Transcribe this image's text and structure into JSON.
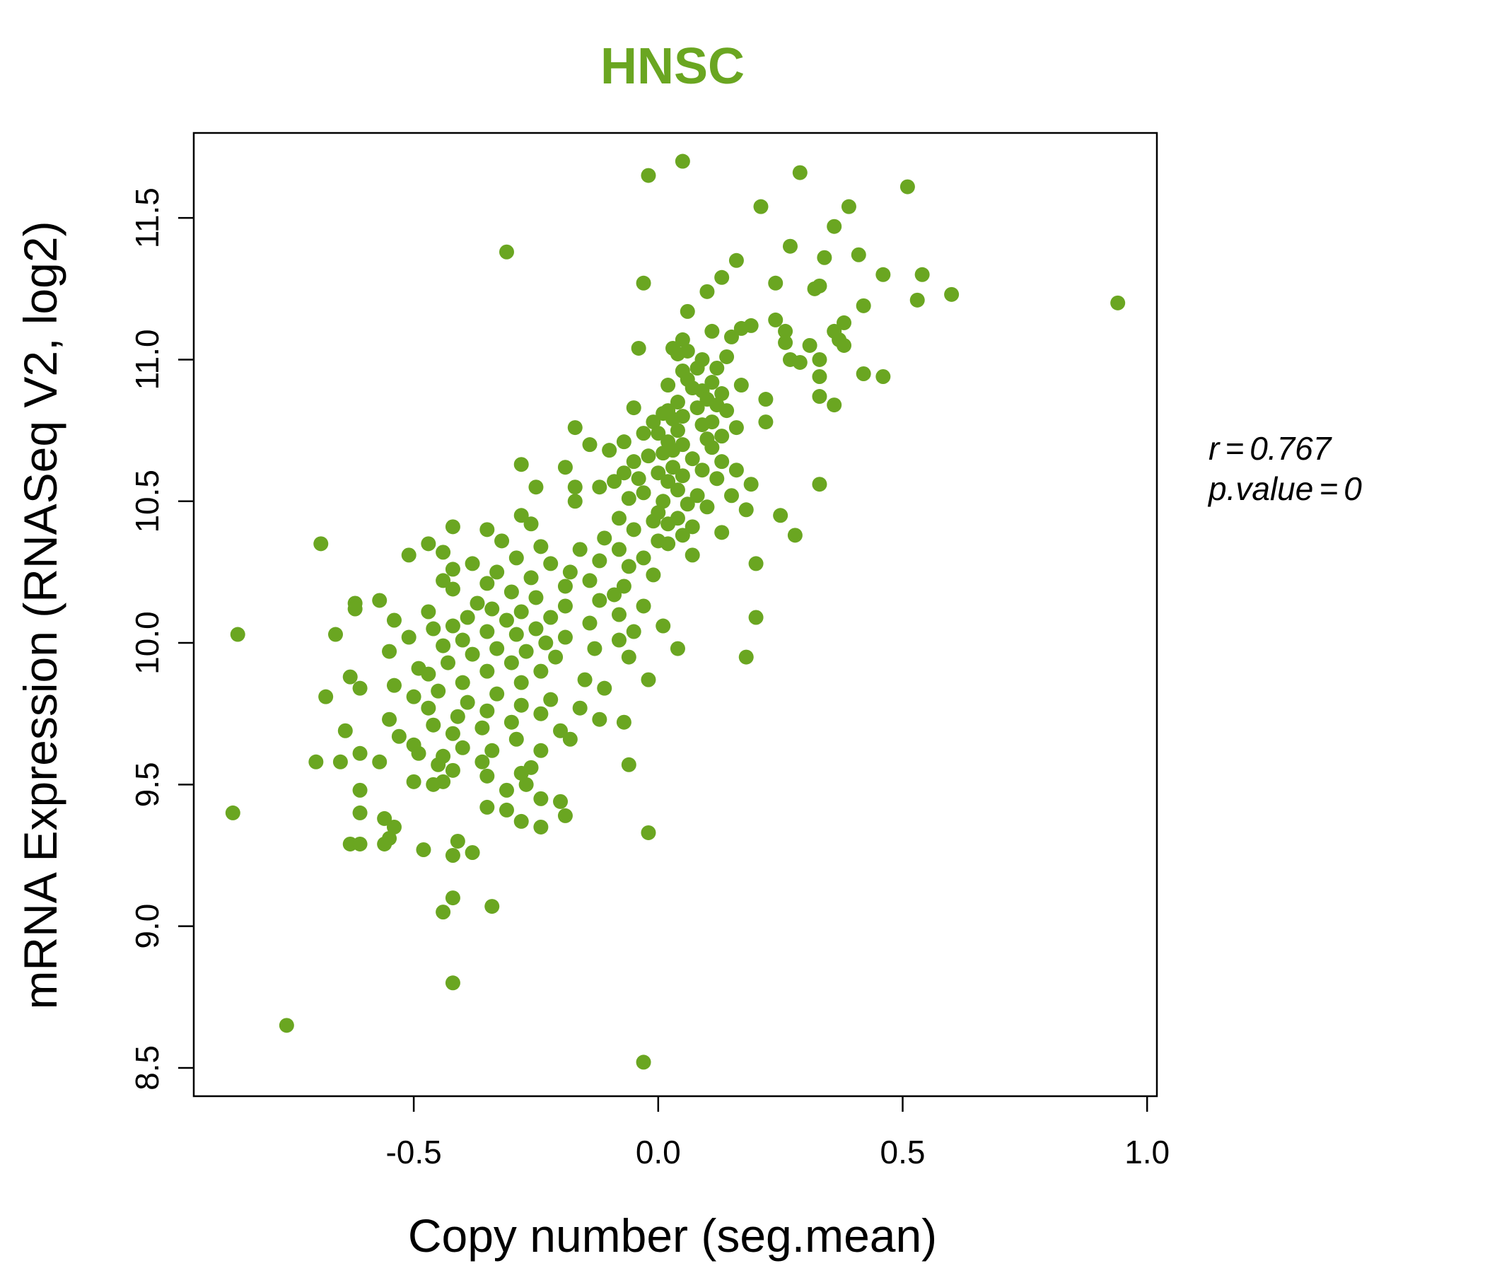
{
  "chart_data": {
    "type": "scatter",
    "title": "HNSC",
    "xlabel": "Copy number (seg.mean)",
    "ylabel": "mRNA Expression (RNASeq V2, log2)",
    "xlim": [
      -0.95,
      1.02
    ],
    "ylim": [
      8.4,
      11.8
    ],
    "x_ticks": [
      -0.5,
      0.0,
      0.5,
      1.0
    ],
    "x_tick_labels": [
      "-0.5",
      "0.0",
      "0.5",
      "1.0"
    ],
    "y_ticks": [
      8.5,
      9.0,
      9.5,
      10.0,
      10.5,
      11.0,
      11.5
    ],
    "y_tick_labels": [
      "8.5",
      "9.0",
      "9.5",
      "10.0",
      "10.5",
      "11.0",
      "11.5"
    ],
    "grid": false,
    "color": "#6aa621",
    "stats": {
      "r_label": "r",
      "r_value": "0.767",
      "p_label": "p.value",
      "p_value": "0"
    },
    "points": [
      [
        -0.02,
        11.65
      ],
      [
        0.05,
        11.7
      ],
      [
        0.29,
        11.66
      ],
      [
        0.51,
        11.61
      ],
      [
        -0.31,
        11.38
      ],
      [
        0.21,
        11.54
      ],
      [
        0.39,
        11.54
      ],
      [
        0.36,
        11.47
      ],
      [
        0.27,
        11.4
      ],
      [
        0.34,
        11.36
      ],
      [
        0.41,
        11.37
      ],
      [
        0.16,
        11.35
      ],
      [
        0.13,
        11.29
      ],
      [
        0.46,
        11.3
      ],
      [
        0.54,
        11.3
      ],
      [
        -0.03,
        11.27
      ],
      [
        0.24,
        11.27
      ],
      [
        0.33,
        11.26
      ],
      [
        0.32,
        11.25
      ],
      [
        0.1,
        11.24
      ],
      [
        0.6,
        11.23
      ],
      [
        0.53,
        11.21
      ],
      [
        0.94,
        11.2
      ],
      [
        0.42,
        11.19
      ],
      [
        0.06,
        11.17
      ],
      [
        0.24,
        11.14
      ],
      [
        0.38,
        11.13
      ],
      [
        0.19,
        11.12
      ],
      [
        0.17,
        11.11
      ],
      [
        0.11,
        11.1
      ],
      [
        0.26,
        11.1
      ],
      [
        0.36,
        11.1
      ],
      [
        0.15,
        11.08
      ],
      [
        0.05,
        11.07
      ],
      [
        0.37,
        11.07
      ],
      [
        0.26,
        11.06
      ],
      [
        0.38,
        11.05
      ],
      [
        0.31,
        11.05
      ],
      [
        -0.04,
        11.04
      ],
      [
        0.03,
        11.04
      ],
      [
        0.06,
        11.03
      ],
      [
        0.04,
        11.02
      ],
      [
        0.14,
        11.01
      ],
      [
        0.09,
        11.0
      ],
      [
        0.27,
        11.0
      ],
      [
        0.33,
        11.0
      ],
      [
        0.29,
        10.99
      ],
      [
        0.12,
        10.97
      ],
      [
        0.08,
        10.97
      ],
      [
        0.05,
        10.96
      ],
      [
        0.42,
        10.95
      ],
      [
        0.46,
        10.94
      ],
      [
        0.33,
        10.94
      ],
      [
        0.06,
        10.93
      ],
      [
        0.11,
        10.92
      ],
      [
        0.17,
        10.91
      ],
      [
        0.02,
        10.91
      ],
      [
        0.07,
        10.9
      ],
      [
        0.09,
        10.89
      ],
      [
        0.13,
        10.88
      ],
      [
        0.33,
        10.87
      ],
      [
        0.1,
        10.86
      ],
      [
        0.22,
        10.86
      ],
      [
        0.04,
        10.85
      ],
      [
        0.36,
        10.84
      ],
      [
        0.12,
        10.84
      ],
      [
        0.08,
        10.83
      ],
      [
        -0.05,
        10.83
      ],
      [
        0.02,
        10.82
      ],
      [
        0.14,
        10.82
      ],
      [
        0.01,
        10.81
      ],
      [
        0.05,
        10.8
      ],
      [
        0.03,
        10.79
      ],
      [
        0.22,
        10.78
      ],
      [
        -0.01,
        10.78
      ],
      [
        0.11,
        10.78
      ],
      [
        0.09,
        10.77
      ],
      [
        0.16,
        10.76
      ],
      [
        -0.17,
        10.76
      ],
      [
        0.04,
        10.75
      ],
      [
        0.0,
        10.74
      ],
      [
        -0.03,
        10.74
      ],
      [
        0.13,
        10.73
      ],
      [
        0.1,
        10.72
      ],
      [
        0.02,
        10.71
      ],
      [
        -0.07,
        10.71
      ],
      [
        0.05,
        10.7
      ],
      [
        -0.14,
        10.7
      ],
      [
        0.11,
        10.69
      ],
      [
        0.03,
        10.68
      ],
      [
        -0.1,
        10.68
      ],
      [
        0.01,
        10.67
      ],
      [
        -0.02,
        10.66
      ],
      [
        0.07,
        10.65
      ],
      [
        0.13,
        10.64
      ],
      [
        -0.05,
        10.64
      ],
      [
        -0.28,
        10.63
      ],
      [
        -0.19,
        10.62
      ],
      [
        0.03,
        10.62
      ],
      [
        0.09,
        10.61
      ],
      [
        0.16,
        10.61
      ],
      [
        -0.07,
        10.6
      ],
      [
        0.0,
        10.6
      ],
      [
        0.05,
        10.59
      ],
      [
        -0.04,
        10.58
      ],
      [
        0.12,
        10.58
      ],
      [
        -0.09,
        10.57
      ],
      [
        0.02,
        10.57
      ],
      [
        0.19,
        10.56
      ],
      [
        0.33,
        10.56
      ],
      [
        -0.17,
        10.55
      ],
      [
        -0.25,
        10.55
      ],
      [
        -0.12,
        10.55
      ],
      [
        0.04,
        10.54
      ],
      [
        -0.03,
        10.53
      ],
      [
        0.08,
        10.52
      ],
      [
        0.15,
        10.52
      ],
      [
        -0.06,
        10.51
      ],
      [
        0.01,
        10.5
      ],
      [
        -0.17,
        10.5
      ],
      [
        0.06,
        10.49
      ],
      [
        0.1,
        10.48
      ],
      [
        0.18,
        10.47
      ],
      [
        0.0,
        10.46
      ],
      [
        -0.28,
        10.45
      ],
      [
        0.25,
        10.45
      ],
      [
        0.04,
        10.44
      ],
      [
        -0.08,
        10.44
      ],
      [
        -0.01,
        10.43
      ],
      [
        0.02,
        10.42
      ],
      [
        -0.26,
        10.42
      ],
      [
        0.07,
        10.41
      ],
      [
        -0.05,
        10.4
      ],
      [
        -0.42,
        10.41
      ],
      [
        -0.35,
        10.4
      ],
      [
        0.13,
        10.39
      ],
      [
        0.28,
        10.38
      ],
      [
        0.05,
        10.38
      ],
      [
        -0.11,
        10.37
      ],
      [
        0.0,
        10.36
      ],
      [
        -0.32,
        10.36
      ],
      [
        -0.47,
        10.35
      ],
      [
        -0.69,
        10.35
      ],
      [
        0.02,
        10.35
      ],
      [
        -0.24,
        10.34
      ],
      [
        -0.08,
        10.33
      ],
      [
        -0.16,
        10.33
      ],
      [
        -0.44,
        10.32
      ],
      [
        -0.51,
        10.31
      ],
      [
        0.07,
        10.31
      ],
      [
        -0.03,
        10.3
      ],
      [
        -0.29,
        10.3
      ],
      [
        -0.12,
        10.29
      ],
      [
        0.2,
        10.28
      ],
      [
        -0.38,
        10.28
      ],
      [
        -0.22,
        10.28
      ],
      [
        -0.06,
        10.27
      ],
      [
        -0.42,
        10.26
      ],
      [
        -0.33,
        10.25
      ],
      [
        -0.18,
        10.25
      ],
      [
        -0.01,
        10.24
      ],
      [
        -0.26,
        10.23
      ],
      [
        -0.44,
        10.22
      ],
      [
        -0.14,
        10.22
      ],
      [
        -0.35,
        10.21
      ],
      [
        -0.07,
        10.2
      ],
      [
        -0.19,
        10.2
      ],
      [
        -0.42,
        10.19
      ],
      [
        -0.3,
        10.18
      ],
      [
        -0.09,
        10.17
      ],
      [
        -0.25,
        10.16
      ],
      [
        -0.57,
        10.15
      ],
      [
        -0.12,
        10.15
      ],
      [
        -0.37,
        10.14
      ],
      [
        -0.62,
        10.14
      ],
      [
        -0.03,
        10.13
      ],
      [
        -0.19,
        10.13
      ],
      [
        -0.34,
        10.12
      ],
      [
        -0.62,
        10.12
      ],
      [
        -0.28,
        10.11
      ],
      [
        -0.47,
        10.11
      ],
      [
        -0.08,
        10.1
      ],
      [
        -0.39,
        10.09
      ],
      [
        0.2,
        10.09
      ],
      [
        -0.22,
        10.09
      ],
      [
        -0.54,
        10.08
      ],
      [
        -0.31,
        10.08
      ],
      [
        -0.14,
        10.07
      ],
      [
        -0.42,
        10.06
      ],
      [
        0.01,
        10.06
      ],
      [
        -0.25,
        10.05
      ],
      [
        -0.46,
        10.05
      ],
      [
        -0.35,
        10.04
      ],
      [
        -0.05,
        10.04
      ],
      [
        -0.86,
        10.03
      ],
      [
        -0.66,
        10.03
      ],
      [
        -0.29,
        10.03
      ],
      [
        -0.51,
        10.02
      ],
      [
        -0.19,
        10.02
      ],
      [
        -0.4,
        10.01
      ],
      [
        -0.08,
        10.01
      ],
      [
        -0.23,
        10.0
      ],
      [
        -0.44,
        9.99
      ],
      [
        -0.33,
        9.98
      ],
      [
        -0.13,
        9.98
      ],
      [
        0.04,
        9.98
      ],
      [
        -0.55,
        9.97
      ],
      [
        -0.27,
        9.97
      ],
      [
        -0.38,
        9.96
      ],
      [
        -0.06,
        9.95
      ],
      [
        -0.21,
        9.95
      ],
      [
        0.18,
        9.95
      ],
      [
        -0.43,
        9.93
      ],
      [
        -0.3,
        9.93
      ],
      [
        -0.49,
        9.91
      ],
      [
        -0.24,
        9.9
      ],
      [
        -0.35,
        9.9
      ],
      [
        -0.47,
        9.89
      ],
      [
        -0.63,
        9.88
      ],
      [
        -0.15,
        9.87
      ],
      [
        -0.02,
        9.87
      ],
      [
        -0.4,
        9.86
      ],
      [
        -0.28,
        9.86
      ],
      [
        -0.54,
        9.85
      ],
      [
        -0.61,
        9.84
      ],
      [
        -0.11,
        9.84
      ],
      [
        -0.45,
        9.83
      ],
      [
        -0.33,
        9.82
      ],
      [
        -0.5,
        9.81
      ],
      [
        -0.68,
        9.81
      ],
      [
        -0.22,
        9.8
      ],
      [
        -0.39,
        9.79
      ],
      [
        -0.28,
        9.78
      ],
      [
        -0.47,
        9.77
      ],
      [
        -0.16,
        9.77
      ],
      [
        -0.35,
        9.76
      ],
      [
        -0.24,
        9.75
      ],
      [
        -0.41,
        9.74
      ],
      [
        -0.12,
        9.73
      ],
      [
        -0.55,
        9.73
      ],
      [
        -0.3,
        9.72
      ],
      [
        -0.07,
        9.72
      ],
      [
        -0.46,
        9.71
      ],
      [
        -0.36,
        9.7
      ],
      [
        -0.64,
        9.69
      ],
      [
        -0.2,
        9.69
      ],
      [
        -0.42,
        9.68
      ],
      [
        -0.53,
        9.67
      ],
      [
        -0.29,
        9.66
      ],
      [
        -0.18,
        9.66
      ],
      [
        -0.5,
        9.64
      ],
      [
        -0.4,
        9.63
      ],
      [
        -0.34,
        9.62
      ],
      [
        -0.24,
        9.62
      ],
      [
        -0.61,
        9.61
      ],
      [
        -0.49,
        9.61
      ],
      [
        -0.44,
        9.6
      ],
      [
        -0.57,
        9.58
      ],
      [
        -0.36,
        9.58
      ],
      [
        -0.7,
        9.58
      ],
      [
        -0.65,
        9.58
      ],
      [
        -0.45,
        9.57
      ],
      [
        -0.06,
        9.57
      ],
      [
        -0.26,
        9.56
      ],
      [
        -0.42,
        9.55
      ],
      [
        -0.28,
        9.54
      ],
      [
        -0.35,
        9.53
      ],
      [
        -0.5,
        9.51
      ],
      [
        -0.44,
        9.51
      ],
      [
        -0.46,
        9.5
      ],
      [
        -0.27,
        9.5
      ],
      [
        -0.31,
        9.48
      ],
      [
        -0.61,
        9.48
      ],
      [
        -0.24,
        9.45
      ],
      [
        -0.2,
        9.44
      ],
      [
        -0.35,
        9.42
      ],
      [
        -0.31,
        9.41
      ],
      [
        -0.87,
        9.4
      ],
      [
        -0.61,
        9.4
      ],
      [
        -0.19,
        9.39
      ],
      [
        -0.56,
        9.38
      ],
      [
        -0.28,
        9.37
      ],
      [
        -0.54,
        9.35
      ],
      [
        -0.24,
        9.35
      ],
      [
        -0.02,
        9.33
      ],
      [
        -0.55,
        9.31
      ],
      [
        -0.41,
        9.3
      ],
      [
        -0.63,
        9.29
      ],
      [
        -0.56,
        9.29
      ],
      [
        -0.61,
        9.29
      ],
      [
        -0.48,
        9.27
      ],
      [
        -0.38,
        9.26
      ],
      [
        -0.42,
        9.25
      ],
      [
        -0.34,
        9.07
      ],
      [
        -0.42,
        9.1
      ],
      [
        -0.44,
        9.05
      ],
      [
        -0.76,
        8.65
      ],
      [
        -0.42,
        8.8
      ],
      [
        -0.03,
        8.52
      ]
    ]
  }
}
